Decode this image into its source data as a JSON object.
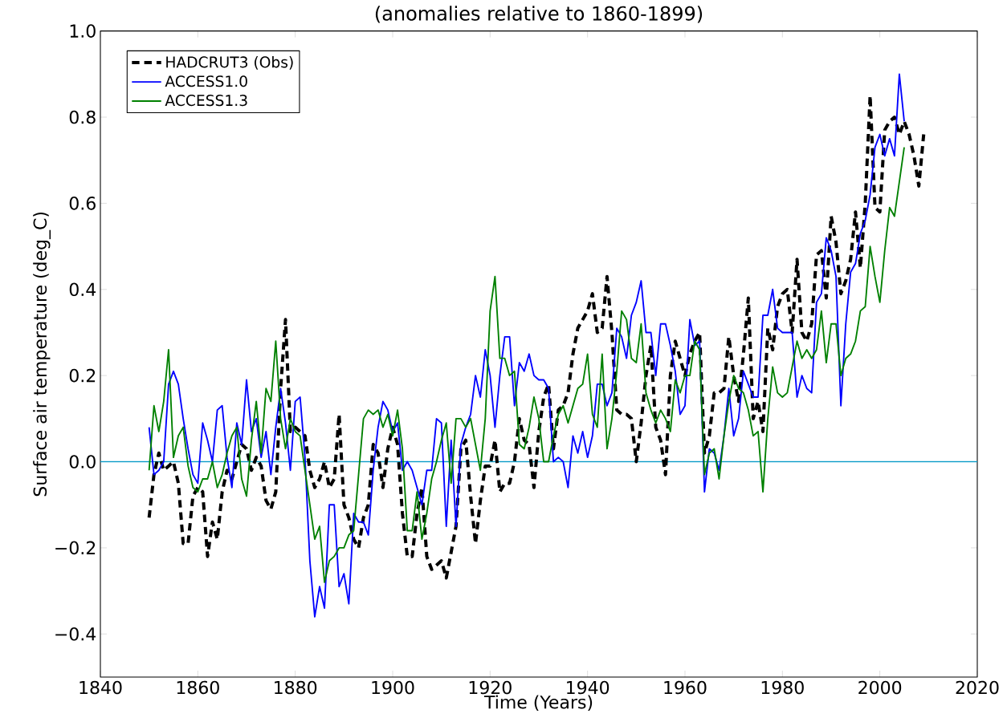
{
  "chart_data": {
    "type": "line",
    "title": "(anomalies relative to 1860-1899)",
    "xlabel": "Time (Years)",
    "ylabel": "Surface air temperature (deg_C)",
    "xlim": [
      1840,
      2020
    ],
    "xticks": [
      1840,
      1860,
      1880,
      1900,
      1920,
      1940,
      1960,
      1980,
      2000,
      2020
    ],
    "ylim": [
      -0.5,
      1.0
    ],
    "yticks": [
      {
        "value": -0.4,
        "label": "−0.4"
      },
      {
        "value": -0.2,
        "label": "−0.2"
      },
      {
        "value": 0.0,
        "label": "0.0"
      },
      {
        "value": 0.2,
        "label": "0.2"
      },
      {
        "value": 0.4,
        "label": "0.4"
      },
      {
        "value": 0.6,
        "label": "0.6"
      },
      {
        "value": 0.8,
        "label": "0.8"
      },
      {
        "value": 1.0,
        "label": "1.0"
      }
    ],
    "legend": "top left",
    "marker": "none",
    "ref_lines": [
      {
        "axis": "y",
        "value": 0,
        "color": "#0a9bc8"
      }
    ],
    "series": [
      {
        "name": "HADCRUT3 (Obs)",
        "color": "#000000",
        "line_style": "dashed",
        "x": [
          1850,
          1851,
          1852,
          1853,
          1854,
          1855,
          1856,
          1857,
          1858,
          1859,
          1860,
          1861,
          1862,
          1863,
          1864,
          1865,
          1866,
          1867,
          1868,
          1869,
          1870,
          1871,
          1872,
          1873,
          1874,
          1875,
          1876,
          1877,
          1878,
          1879,
          1880,
          1881,
          1882,
          1883,
          1884,
          1885,
          1886,
          1887,
          1888,
          1889,
          1890,
          1891,
          1892,
          1893,
          1894,
          1895,
          1896,
          1897,
          1898,
          1899,
          1900,
          1901,
          1902,
          1903,
          1904,
          1905,
          1906,
          1907,
          1908,
          1909,
          1910,
          1911,
          1912,
          1913,
          1914,
          1915,
          1916,
          1917,
          1918,
          1919,
          1920,
          1921,
          1922,
          1923,
          1924,
          1925,
          1926,
          1927,
          1928,
          1929,
          1930,
          1931,
          1932,
          1933,
          1934,
          1935,
          1936,
          1937,
          1938,
          1939,
          1940,
          1941,
          1942,
          1943,
          1944,
          1945,
          1946,
          1947,
          1948,
          1949,
          1950,
          1951,
          1952,
          1953,
          1954,
          1955,
          1956,
          1957,
          1958,
          1959,
          1960,
          1961,
          1962,
          1963,
          1964,
          1965,
          1966,
          1967,
          1968,
          1969,
          1970,
          1971,
          1972,
          1973,
          1974,
          1975,
          1976,
          1977,
          1978,
          1979,
          1980,
          1981,
          1982,
          1983,
          1984,
          1985,
          1986,
          1987,
          1988,
          1989,
          1990,
          1991,
          1992,
          1993,
          1994,
          1995,
          1996,
          1997,
          1998,
          1999,
          2000,
          2001,
          2002,
          2003,
          2004,
          2005,
          2006,
          2007,
          2008,
          2009
        ],
        "values": [
          -0.13,
          -0.03,
          0.02,
          -0.02,
          -0.01,
          0.0,
          -0.05,
          -0.19,
          -0.19,
          -0.08,
          -0.06,
          -0.07,
          -0.22,
          -0.14,
          -0.18,
          -0.07,
          -0.02,
          -0.04,
          0.0,
          0.04,
          0.03,
          -0.02,
          0.01,
          -0.01,
          -0.09,
          -0.11,
          -0.07,
          0.17,
          0.33,
          0.07,
          0.08,
          0.07,
          0.06,
          -0.02,
          -0.06,
          -0.04,
          0.0,
          -0.06,
          -0.04,
          0.11,
          -0.1,
          -0.13,
          -0.18,
          -0.2,
          -0.13,
          -0.1,
          0.04,
          0.02,
          -0.06,
          0.03,
          0.08,
          0.04,
          -0.12,
          -0.22,
          -0.22,
          -0.12,
          -0.06,
          -0.22,
          -0.25,
          -0.24,
          -0.23,
          -0.27,
          -0.21,
          -0.15,
          0.03,
          0.05,
          -0.08,
          -0.19,
          -0.09,
          -0.01,
          -0.01,
          0.05,
          -0.07,
          -0.05,
          -0.05,
          0.0,
          0.1,
          0.05,
          0.04,
          -0.06,
          0.07,
          0.15,
          0.18,
          0.03,
          0.12,
          0.13,
          0.16,
          0.25,
          0.31,
          0.33,
          0.35,
          0.39,
          0.3,
          0.31,
          0.43,
          0.3,
          0.12,
          0.11,
          0.11,
          0.1,
          0.0,
          0.09,
          0.2,
          0.27,
          0.08,
          0.05,
          -0.03,
          0.2,
          0.28,
          0.24,
          0.2,
          0.25,
          0.28,
          0.3,
          0.02,
          0.06,
          0.16,
          0.16,
          0.17,
          0.29,
          0.2,
          0.14,
          0.25,
          0.38,
          0.1,
          0.14,
          0.07,
          0.31,
          0.26,
          0.36,
          0.39,
          0.4,
          0.3,
          0.47,
          0.3,
          0.28,
          0.32,
          0.48,
          0.49,
          0.38,
          0.57,
          0.51,
          0.39,
          0.42,
          0.47,
          0.58,
          0.45,
          0.6,
          0.85,
          0.59,
          0.58,
          0.77,
          0.79,
          0.8,
          0.76,
          0.79,
          0.76,
          0.71,
          0.64,
          0.76
        ]
      },
      {
        "name": "ACCESS1.0",
        "color": "#0000ff",
        "line_style": "solid",
        "x": [
          1850,
          1851,
          1852,
          1853,
          1854,
          1855,
          1856,
          1857,
          1858,
          1859,
          1860,
          1861,
          1862,
          1863,
          1864,
          1865,
          1866,
          1867,
          1868,
          1869,
          1870,
          1871,
          1872,
          1873,
          1874,
          1875,
          1876,
          1877,
          1878,
          1879,
          1880,
          1881,
          1882,
          1883,
          1884,
          1885,
          1886,
          1887,
          1888,
          1889,
          1890,
          1891,
          1892,
          1893,
          1894,
          1895,
          1896,
          1897,
          1898,
          1899,
          1900,
          1901,
          1902,
          1903,
          1904,
          1905,
          1906,
          1907,
          1908,
          1909,
          1910,
          1911,
          1912,
          1913,
          1914,
          1915,
          1916,
          1917,
          1918,
          1919,
          1920,
          1921,
          1922,
          1923,
          1924,
          1925,
          1926,
          1927,
          1928,
          1929,
          1930,
          1931,
          1932,
          1933,
          1934,
          1935,
          1936,
          1937,
          1938,
          1939,
          1940,
          1941,
          1942,
          1943,
          1944,
          1945,
          1946,
          1947,
          1948,
          1949,
          1950,
          1951,
          1952,
          1953,
          1954,
          1955,
          1956,
          1957,
          1958,
          1959,
          1960,
          1961,
          1962,
          1963,
          1964,
          1965,
          1966,
          1967,
          1968,
          1969,
          1970,
          1971,
          1972,
          1973,
          1974,
          1975,
          1976,
          1977,
          1978,
          1979,
          1980,
          1981,
          1982,
          1983,
          1984,
          1985,
          1986,
          1987,
          1988,
          1989,
          1990,
          1991,
          1992,
          1993,
          1994,
          1995,
          1996,
          1997,
          1998,
          1999,
          2000,
          2001,
          2002,
          2003,
          2004,
          2005
        ],
        "values": [
          0.08,
          -0.03,
          -0.02,
          0.0,
          0.18,
          0.21,
          0.18,
          0.1,
          0.03,
          -0.03,
          -0.05,
          0.09,
          0.05,
          0.0,
          0.12,
          0.13,
          0.01,
          -0.06,
          0.09,
          0.04,
          0.19,
          0.07,
          0.1,
          0.01,
          0.07,
          -0.03,
          0.08,
          0.17,
          0.09,
          -0.02,
          0.14,
          0.15,
          0.01,
          -0.23,
          -0.36,
          -0.29,
          -0.34,
          -0.1,
          -0.1,
          -0.29,
          -0.26,
          -0.33,
          -0.12,
          -0.14,
          -0.14,
          -0.17,
          -0.02,
          0.08,
          0.14,
          0.12,
          0.07,
          0.09,
          -0.02,
          0.0,
          -0.02,
          -0.06,
          -0.1,
          -0.02,
          -0.02,
          0.1,
          0.09,
          -0.15,
          0.05,
          -0.15,
          0.04,
          0.08,
          0.11,
          0.2,
          0.15,
          0.26,
          0.2,
          0.08,
          0.2,
          0.29,
          0.29,
          0.13,
          0.23,
          0.21,
          0.25,
          0.2,
          0.19,
          0.19,
          0.17,
          0.0,
          0.01,
          0.0,
          -0.06,
          0.06,
          0.02,
          0.07,
          0.01,
          0.06,
          0.18,
          0.18,
          0.13,
          0.16,
          0.31,
          0.29,
          0.24,
          0.34,
          0.37,
          0.42,
          0.3,
          0.3,
          0.2,
          0.32,
          0.32,
          0.27,
          0.21,
          0.11,
          0.13,
          0.33,
          0.27,
          0.28,
          -0.07,
          0.03,
          0.02,
          -0.02,
          0.06,
          0.17,
          0.06,
          0.1,
          0.21,
          0.18,
          0.15,
          0.15,
          0.34,
          0.34,
          0.4,
          0.31,
          0.3,
          0.3,
          0.3,
          0.15,
          0.2,
          0.17,
          0.16,
          0.37,
          0.39,
          0.52,
          0.49,
          0.43,
          0.13,
          0.32,
          0.44,
          0.46,
          0.53,
          0.56,
          0.62,
          0.73,
          0.76,
          0.71,
          0.75,
          0.71,
          0.9,
          0.79
        ]
      },
      {
        "name": "ACCESS1.3",
        "color": "#008000",
        "line_style": "solid",
        "x": [
          1850,
          1851,
          1852,
          1853,
          1854,
          1855,
          1856,
          1857,
          1858,
          1859,
          1860,
          1861,
          1862,
          1863,
          1864,
          1865,
          1866,
          1867,
          1868,
          1869,
          1870,
          1871,
          1872,
          1873,
          1874,
          1875,
          1876,
          1877,
          1878,
          1879,
          1880,
          1881,
          1882,
          1883,
          1884,
          1885,
          1886,
          1887,
          1888,
          1889,
          1890,
          1891,
          1892,
          1893,
          1894,
          1895,
          1896,
          1897,
          1898,
          1899,
          1900,
          1901,
          1902,
          1903,
          1904,
          1905,
          1906,
          1907,
          1908,
          1909,
          1910,
          1911,
          1912,
          1913,
          1914,
          1915,
          1916,
          1917,
          1918,
          1919,
          1920,
          1921,
          1922,
          1923,
          1924,
          1925,
          1926,
          1927,
          1928,
          1929,
          1930,
          1931,
          1932,
          1933,
          1934,
          1935,
          1936,
          1937,
          1938,
          1939,
          1940,
          1941,
          1942,
          1943,
          1944,
          1945,
          1946,
          1947,
          1948,
          1949,
          1950,
          1951,
          1952,
          1953,
          1954,
          1955,
          1956,
          1957,
          1958,
          1959,
          1960,
          1961,
          1962,
          1963,
          1964,
          1965,
          1966,
          1967,
          1968,
          1969,
          1970,
          1971,
          1972,
          1973,
          1974,
          1975,
          1976,
          1977,
          1978,
          1979,
          1980,
          1981,
          1982,
          1983,
          1984,
          1985,
          1986,
          1987,
          1988,
          1989,
          1990,
          1991,
          1992,
          1993,
          1994,
          1995,
          1996,
          1997,
          1998,
          1999,
          2000,
          2001,
          2002,
          2003,
          2004,
          2005
        ],
        "values": [
          -0.02,
          0.13,
          0.07,
          0.14,
          0.26,
          0.01,
          0.06,
          0.08,
          -0.01,
          -0.06,
          -0.07,
          -0.04,
          -0.04,
          0.0,
          -0.06,
          -0.03,
          0.02,
          0.06,
          0.08,
          -0.04,
          -0.08,
          0.05,
          0.14,
          0.02,
          0.17,
          0.14,
          0.28,
          0.1,
          0.03,
          0.1,
          0.07,
          0.06,
          -0.02,
          -0.1,
          -0.18,
          -0.15,
          -0.28,
          -0.23,
          -0.22,
          -0.2,
          -0.2,
          -0.17,
          -0.16,
          -0.03,
          0.1,
          0.12,
          0.11,
          0.12,
          0.08,
          0.11,
          0.06,
          0.12,
          0.03,
          -0.16,
          -0.16,
          -0.07,
          -0.18,
          -0.12,
          -0.04,
          0.0,
          0.05,
          0.09,
          -0.05,
          0.1,
          0.1,
          0.08,
          0.1,
          0.04,
          -0.02,
          0.1,
          0.35,
          0.43,
          0.24,
          0.24,
          0.2,
          0.21,
          0.04,
          0.03,
          0.08,
          0.15,
          0.1,
          0.0,
          0.0,
          0.06,
          0.11,
          0.13,
          0.09,
          0.13,
          0.17,
          0.18,
          0.25,
          0.11,
          0.08,
          0.25,
          0.03,
          0.1,
          0.21,
          0.35,
          0.33,
          0.24,
          0.23,
          0.32,
          0.16,
          0.12,
          0.09,
          0.12,
          0.1,
          0.07,
          0.19,
          0.16,
          0.2,
          0.2,
          0.28,
          0.26,
          -0.03,
          0.02,
          0.03,
          -0.04,
          0.06,
          0.14,
          0.2,
          0.17,
          0.16,
          0.12,
          0.06,
          0.07,
          -0.07,
          0.1,
          0.22,
          0.16,
          0.15,
          0.16,
          0.22,
          0.28,
          0.24,
          0.26,
          0.24,
          0.26,
          0.35,
          0.23,
          0.32,
          0.32,
          0.2,
          0.24,
          0.25,
          0.28,
          0.35,
          0.36,
          0.5,
          0.43,
          0.37,
          0.49,
          0.59,
          0.57,
          0.65,
          0.73
        ]
      }
    ]
  }
}
